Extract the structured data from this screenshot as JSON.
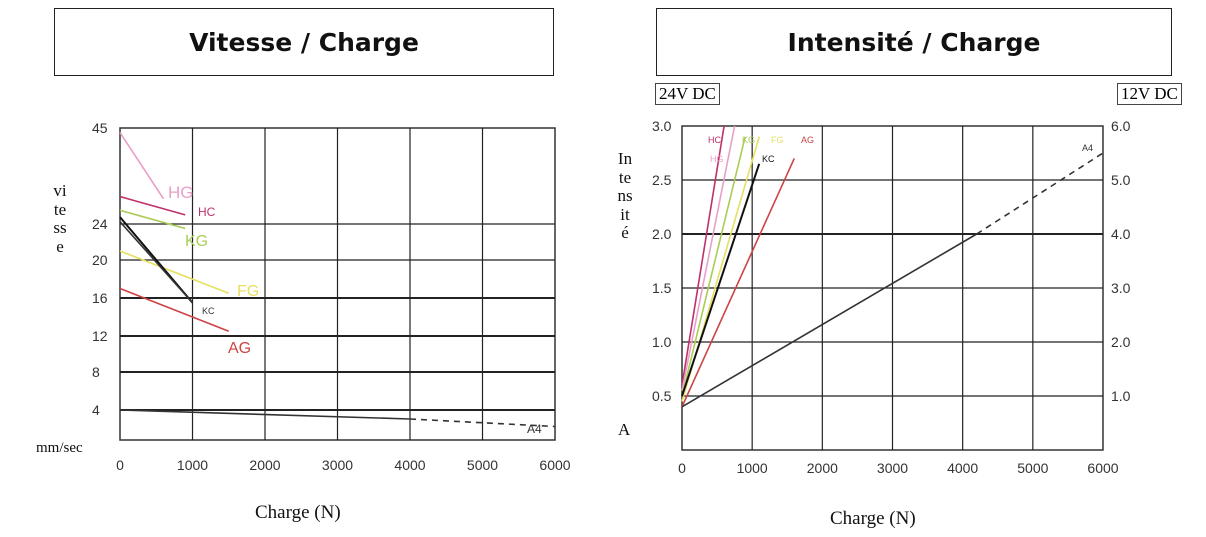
{
  "chart_data": [
    {
      "type": "line",
      "title": "Vitesse / Charge",
      "xlabel": "Charge (N)",
      "ylabel": "vitesse",
      "yunit": "mm/sec",
      "xlim": [
        0,
        6000
      ],
      "ylim": [
        0,
        45
      ],
      "xticks": [
        "0",
        "1000",
        "2000",
        "3000",
        "4000",
        "5000",
        "6000"
      ],
      "yticks": [
        "4",
        "8",
        "12",
        "16",
        "20",
        "24",
        "45"
      ],
      "grid": true,
      "series": [
        {
          "name": "HG",
          "color": "#e8a0c8",
          "x": [
            0,
            600
          ],
          "y": [
            44,
            29.5
          ]
        },
        {
          "name": "HC",
          "color": "#c0306a",
          "x": [
            0,
            900
          ],
          "y": [
            30,
            26
          ]
        },
        {
          "name": "KG",
          "color": "#aacc55",
          "x": [
            0,
            900
          ],
          "y": [
            27,
            23.5
          ]
        },
        {
          "name": "FG",
          "color": "#e6e060",
          "x": [
            0,
            1500
          ],
          "y": [
            21,
            16.5
          ]
        },
        {
          "name": "",
          "color": "#111111",
          "x": [
            0,
            1000
          ],
          "y": [
            25.5,
            15.5
          ]
        },
        {
          "name": "KC",
          "color": "#333333",
          "x": [
            0,
            1000
          ],
          "y": [
            24.5,
            15.5
          ]
        },
        {
          "name": "AG",
          "color": "#cc4444",
          "x": [
            0,
            1500
          ],
          "y": [
            17,
            12.5
          ]
        },
        {
          "name": "A4",
          "color": "#333333",
          "x": [
            0,
            4000
          ],
          "y": [
            4,
            2.8
          ],
          "dashed_x": [
            4000,
            6000
          ],
          "dashed_y": [
            2.8,
            1.8
          ]
        }
      ]
    },
    {
      "type": "line",
      "title": "Intensité / Charge",
      "xlabel": "Charge (N)",
      "ylabel": "Intensité",
      "yunit": "A",
      "left_axis_label": "24V DC",
      "right_axis_label": "12V DC",
      "xlim": [
        0,
        6000
      ],
      "ylim": [
        0,
        3.0
      ],
      "ylim_right": [
        0,
        6.0
      ],
      "xticks": [
        "0",
        "1000",
        "2000",
        "3000",
        "4000",
        "5000",
        "6000"
      ],
      "yticks": [
        "0.5",
        "1.0",
        "1.5",
        "2.0",
        "2.5",
        "3.0"
      ],
      "yticks_right": [
        "1.0",
        "2.0",
        "3.0",
        "4.0",
        "5.0",
        "6.0"
      ],
      "grid": true,
      "series": [
        {
          "name": "HC",
          "color": "#c0306a",
          "x": [
            0,
            600
          ],
          "y": [
            0.6,
            3.0
          ]
        },
        {
          "name": "HG",
          "color": "#e8a0c8",
          "x": [
            0,
            750
          ],
          "y": [
            0.55,
            3.0
          ]
        },
        {
          "name": "KG",
          "color": "#aacc55",
          "x": [
            0,
            900
          ],
          "y": [
            0.5,
            2.9
          ]
        },
        {
          "name": "FG",
          "color": "#e6e060",
          "x": [
            0,
            1100
          ],
          "y": [
            0.45,
            2.9
          ]
        },
        {
          "name": "KC",
          "color": "#111111",
          "x": [
            0,
            1100
          ],
          "y": [
            0.5,
            2.65
          ]
        },
        {
          "name": "AG",
          "color": "#cc4444",
          "x": [
            0,
            1600
          ],
          "y": [
            0.4,
            2.7
          ]
        },
        {
          "name": "A4",
          "color": "#333333",
          "x": [
            0,
            4200
          ],
          "y": [
            0.4,
            2.0
          ],
          "dashed_x": [
            4200,
            6000
          ],
          "dashed_y": [
            2.0,
            2.75
          ]
        }
      ]
    }
  ]
}
